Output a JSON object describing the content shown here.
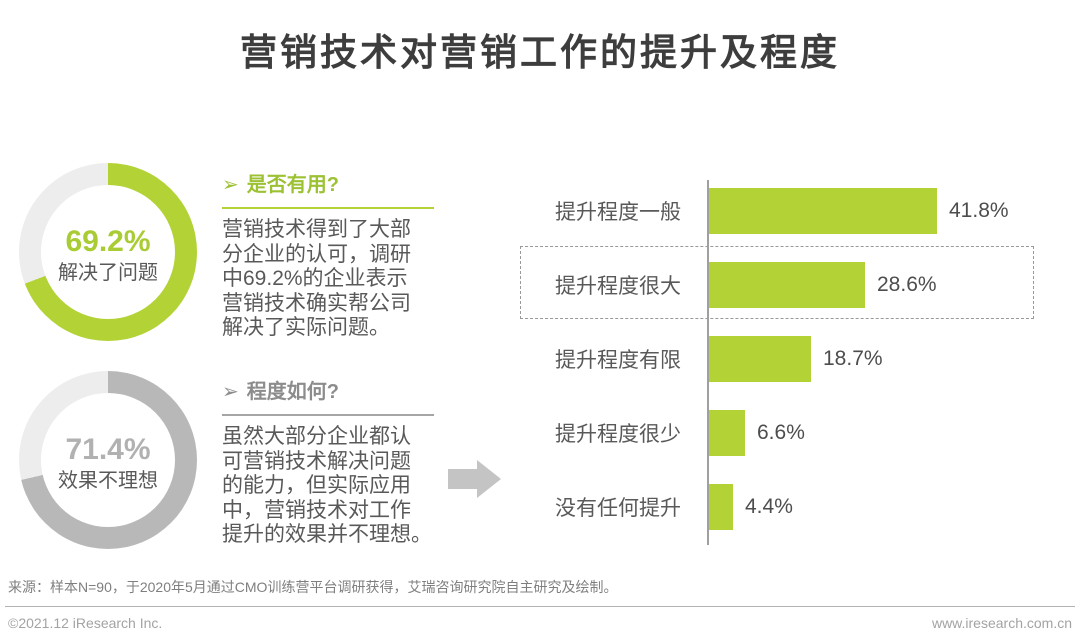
{
  "page": {
    "title": "营销技术对营销工作的提升及程度"
  },
  "colors": {
    "brand_green": "#b2d235",
    "donut_track": "#ededed",
    "donut_gray": "#b8b8b8",
    "title_text": "#3d3d3d",
    "body_text": "#595959",
    "heading_green": "#9cc132",
    "heading_gray": "#8c8c8c",
    "axis_gray": "#9f9f9f",
    "arrow_gray": "#c4c4c4"
  },
  "sections": {
    "useful": {
      "marker": "➢",
      "heading": "是否有用?",
      "body": "营销技术得到了大部\n分企业的认可，调研\n中69.2%的企业表示\n营销技术确实帮公司\n解决了实际问题。"
    },
    "degree": {
      "marker": "➢",
      "heading": "程度如何?",
      "body": "虽然大部分企业都认\n可营销技术解决问题\n的能力，但实际应用\n中，营销技术对工作\n提升的效果并不理想。"
    }
  },
  "chart_data": [
    {
      "type": "pie",
      "subtype": "donut",
      "value": 69.2,
      "value_label": "69.2%",
      "label": "解决了问题",
      "color": "#b2d235",
      "track_color": "#ededed"
    },
    {
      "type": "pie",
      "subtype": "donut",
      "value": 71.4,
      "value_label": "71.4%",
      "label": "效果不理想",
      "color": "#b8b8b8",
      "track_color": "#ededed"
    },
    {
      "type": "bar",
      "orientation": "horizontal",
      "categories": [
        "提升程度一般",
        "提升程度很大",
        "提升程度有限",
        "提升程度很少",
        "没有任何提升"
      ],
      "values": [
        41.8,
        28.6,
        18.7,
        6.6,
        4.4
      ],
      "value_labels": [
        "41.8%",
        "28.6%",
        "18.7%",
        "6.6%",
        "4.4%"
      ],
      "bar_color": "#b2d235",
      "xlim": [
        0,
        45
      ],
      "grid": false,
      "legend": "none",
      "highlighted_category": "提升程度很大",
      "highlight_style": "dashed-outline"
    }
  ],
  "footer": {
    "source": "来源：样本N=90，于2020年5月通过CMO训练营平台调研获得，艾瑞咨询研究院自主研究及绘制。",
    "copyright": "©2021.12 iResearch Inc.",
    "website": "www.iresearch.com.cn"
  }
}
